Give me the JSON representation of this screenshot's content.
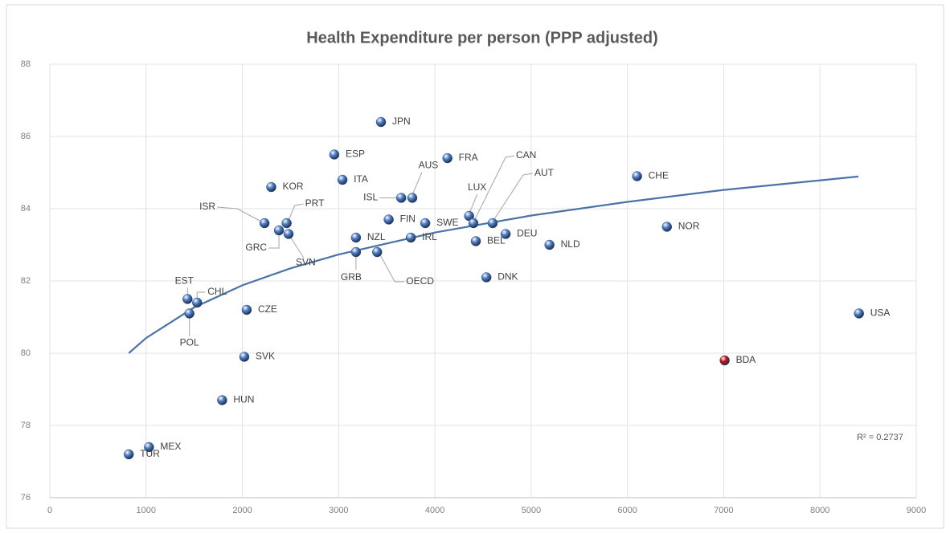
{
  "chart_data": {
    "type": "scatter",
    "title": "Health Expenditure per person (PPP adjusted)",
    "labels": [
      "TUR",
      "MEX",
      "HUN",
      "SVK",
      "CZE",
      "POL",
      "EST",
      "CHL",
      "ISR",
      "KOR",
      "GRC",
      "PRT",
      "SVN",
      "ESP",
      "ITA",
      "JPN",
      "NZL",
      "GRB",
      "OECD",
      "ISL",
      "AUS",
      "FIN",
      "IRL",
      "SWE",
      "FRA",
      "LUX",
      "CAN",
      "BEL",
      "AUT",
      "DEU",
      "DNK",
      "NLD",
      "CHE",
      "NOR",
      "BDA",
      "USA"
    ],
    "x": [
      820,
      1030,
      1790,
      2020,
      2045,
      1450,
      1430,
      1530,
      2230,
      2300,
      2380,
      2460,
      2480,
      2955,
      3040,
      3440,
      3180,
      3180,
      3400,
      3650,
      3765,
      3520,
      3750,
      3900,
      4130,
      4355,
      4400,
      4425,
      4600,
      4735,
      4535,
      5190,
      6100,
      6410,
      7010,
      8405
    ],
    "values": [
      77.2,
      77.4,
      78.7,
      79.9,
      81.2,
      81.1,
      81.5,
      81.4,
      83.6,
      84.6,
      83.4,
      83.6,
      83.3,
      85.5,
      84.8,
      86.4,
      83.2,
      82.8,
      82.8,
      84.3,
      84.3,
      83.7,
      83.2,
      83.6,
      85.4,
      83.8,
      83.6,
      83.1,
      83.6,
      83.3,
      82.1,
      83.0,
      84.9,
      83.5,
      79.8,
      81.1
    ],
    "colors": [
      "#4f7fc4",
      "#4f7fc4",
      "#4f7fc4",
      "#4f7fc4",
      "#4f7fc4",
      "#4f7fc4",
      "#4f7fc4",
      "#4f7fc4",
      "#4f7fc4",
      "#4f7fc4",
      "#4f7fc4",
      "#4f7fc4",
      "#4f7fc4",
      "#4f7fc4",
      "#4f7fc4",
      "#4f7fc4",
      "#4f7fc4",
      "#4f7fc4",
      "#4f7fc4",
      "#4f7fc4",
      "#4f7fc4",
      "#4f7fc4",
      "#4f7fc4",
      "#4f7fc4",
      "#4f7fc4",
      "#4f7fc4",
      "#4f7fc4",
      "#4f7fc4",
      "#4f7fc4",
      "#4f7fc4",
      "#4f7fc4",
      "#4f7fc4",
      "#4f7fc4",
      "#4f7fc4",
      "#d01010",
      "#4f7fc4"
    ],
    "trendline": {
      "color": "#4a73a8",
      "x": [
        820,
        1000,
        1500,
        2000,
        2500,
        3000,
        4000,
        5000,
        6000,
        7000,
        8400
      ],
      "values": [
        80.0,
        80.42,
        81.27,
        81.88,
        82.35,
        82.73,
        83.34,
        83.81,
        84.19,
        84.52,
        84.89
      ]
    },
    "r_squared_label": "R² = 0.2737",
    "xlim": [
      0,
      9000
    ],
    "xticks": [
      0,
      1000,
      2000,
      3000,
      4000,
      5000,
      6000,
      7000,
      8000,
      9000
    ],
    "ylim": [
      76,
      88
    ],
    "yticks": [
      76,
      78,
      80,
      82,
      84,
      86,
      88
    ],
    "grid": true
  }
}
